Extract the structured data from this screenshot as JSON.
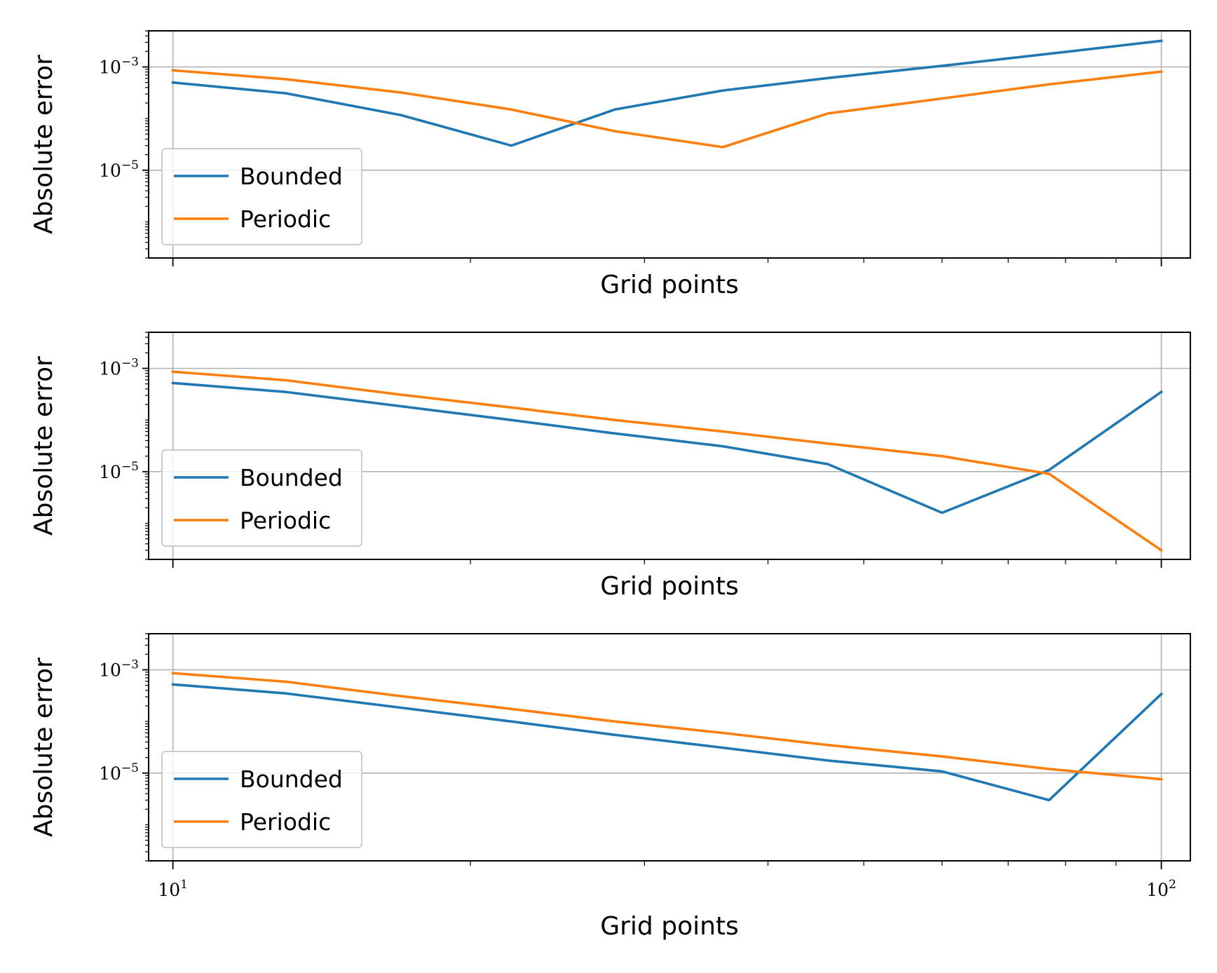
{
  "chart_data": [
    {
      "type": "line",
      "xlabel": "Grid points",
      "ylabel": "Absolute error",
      "xscale": "log",
      "yscale": "log",
      "xlim": [
        9.45,
        107
      ],
      "ylim": [
        2e-07,
        0.005
      ],
      "grid": true,
      "legend_position": "lower-left",
      "x": [
        10,
        13,
        17,
        22,
        28,
        36,
        46,
        60,
        77,
        100
      ],
      "series": [
        {
          "name": "Bounded",
          "color": "#1f77b4",
          "values": [
            0.0005,
            0.00031,
            0.000117,
            3e-05,
            0.00015,
            0.00035,
            0.00061,
            0.00105,
            0.0018,
            0.0032
          ]
        },
        {
          "name": "Periodic",
          "color": "#ff7f0e",
          "values": [
            0.00086,
            0.00058,
            0.00032,
            0.00015,
            5.7e-05,
            2.8e-05,
            0.000126,
            0.000245,
            0.00046,
            0.00081
          ]
        }
      ],
      "yticks": [
        {
          "value": 0.001,
          "base": "10",
          "exp": "−3"
        },
        {
          "value": 1e-05,
          "base": "10",
          "exp": "−5"
        }
      ],
      "xticks": [
        {
          "value": 10,
          "base": "10",
          "exp": "1"
        },
        {
          "value": 100,
          "base": "10",
          "exp": "2"
        }
      ],
      "show_xtick_labels": false
    },
    {
      "type": "line",
      "xlabel": "Grid points",
      "ylabel": "Absolute error",
      "xscale": "log",
      "yscale": "log",
      "xlim": [
        9.45,
        107
      ],
      "ylim": [
        2e-07,
        0.005
      ],
      "grid": true,
      "legend_position": "lower-left",
      "x": [
        10,
        13,
        17,
        22,
        28,
        36,
        46,
        60,
        77,
        100
      ],
      "series": [
        {
          "name": "Bounded",
          "color": "#1f77b4",
          "values": [
            0.00052,
            0.00035,
            0.000185,
            0.0001,
            5.5e-05,
            3.1e-05,
            1.4e-05,
            1.6e-06,
            1.08e-05,
            0.00035
          ]
        },
        {
          "name": "Periodic",
          "color": "#ff7f0e",
          "values": [
            0.00086,
            0.00059,
            0.00031,
            0.000175,
            0.0001,
            6e-05,
            3.5e-05,
            2e-05,
            9.1e-06,
            3e-07
          ]
        }
      ],
      "yticks": [
        {
          "value": 0.001,
          "base": "10",
          "exp": "−3"
        },
        {
          "value": 1e-05,
          "base": "10",
          "exp": "−5"
        }
      ],
      "xticks": [
        {
          "value": 10,
          "base": "10",
          "exp": "1"
        },
        {
          "value": 100,
          "base": "10",
          "exp": "2"
        }
      ],
      "show_xtick_labels": false
    },
    {
      "type": "line",
      "xlabel": "Grid points",
      "ylabel": "Absolute error",
      "xscale": "log",
      "yscale": "log",
      "xlim": [
        9.45,
        107
      ],
      "ylim": [
        2e-07,
        0.005
      ],
      "grid": true,
      "legend_position": "lower-left",
      "x": [
        10,
        13,
        17,
        22,
        28,
        36,
        46,
        60,
        77,
        100
      ],
      "series": [
        {
          "name": "Bounded",
          "color": "#1f77b4",
          "values": [
            0.00052,
            0.00035,
            0.000185,
            0.0001,
            5.5e-05,
            3.1e-05,
            1.75e-05,
            1.08e-05,
            3e-06,
            0.00034
          ]
        },
        {
          "name": "Periodic",
          "color": "#ff7f0e",
          "values": [
            0.00086,
            0.00059,
            0.00031,
            0.000175,
            0.0001,
            6e-05,
            3.5e-05,
            2.1e-05,
            1.2e-05,
            7.6e-06
          ]
        }
      ],
      "yticks": [
        {
          "value": 0.001,
          "base": "10",
          "exp": "−3"
        },
        {
          "value": 1e-05,
          "base": "10",
          "exp": "−5"
        }
      ],
      "xticks": [
        {
          "value": 10,
          "base": "10",
          "exp": "1"
        },
        {
          "value": 100,
          "base": "10",
          "exp": "2"
        }
      ],
      "show_xtick_labels": true
    }
  ]
}
